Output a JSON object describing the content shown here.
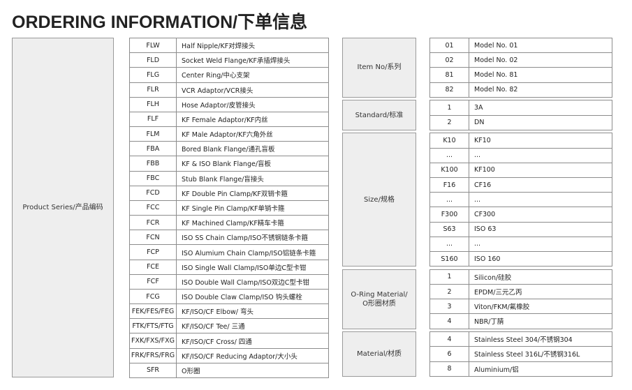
{
  "header": {
    "title": "ORDERING INFORMATION/下单信息"
  },
  "product_series": {
    "label": "Product Series/产品编码",
    "rows": [
      [
        "FLW",
        "Half Nipple/KF对焊接头"
      ],
      [
        "FLD",
        "Socket Weld Flange/KF承插焊接头"
      ],
      [
        "FLG",
        "Center Ring/中心支架"
      ],
      [
        "FLR",
        "VCR Adaptor/VCR接头"
      ],
      [
        "FLH",
        "Hose Adaptor/皮管接头"
      ],
      [
        "FLF",
        "KF Female Adaptor/KF内丝"
      ],
      [
        "FLM",
        "KF Male Adaptor/KF六角外丝"
      ],
      [
        "FBA",
        "Bored Blank Flange/通孔盲板"
      ],
      [
        "FBB",
        "KF & ISO Blank Flange/盲板"
      ],
      [
        "FBC",
        "Stub Blank Flange/盲接头"
      ],
      [
        "FCD",
        "KF Double Pin Clamp/KF双销卡箍"
      ],
      [
        "FCC",
        "KF Single Pin Clamp/KF单销卡箍"
      ],
      [
        "FCR",
        "KF Machined Clamp/KF精车卡箍"
      ],
      [
        "FCN",
        "ISO SS Chain Clamp/ISO不锈钢链条卡箍"
      ],
      [
        "FCP",
        "ISO Alumium Chain Clamp/ISO铝链条卡箍"
      ],
      [
        "FCE",
        "ISO Single Wall Clamp/ISO单边C型卡钳"
      ],
      [
        "FCF",
        "ISO Double Wall Clamp/ISO双边C型卡钳"
      ],
      [
        "FCG",
        "ISO Double Claw Clamp/ISO 钩头螺栓"
      ],
      [
        "FEK/FES/FEG",
        "KF/ISO/CF Elbow/ 弯头"
      ],
      [
        "FTK/FTS/FTG",
        "KF/ISO/CF Tee/ 三通"
      ],
      [
        "FXK/FXS/FXG",
        "KF/ISO/CF Cross/ 四通"
      ],
      [
        "FRK/FRS/FRG",
        "KF/ISO/CF Reducing Adaptor/大小头"
      ],
      [
        "SFR",
        "O形圈"
      ]
    ]
  },
  "groups": [
    {
      "label": "Item No/系列",
      "rows": [
        [
          "01",
          "Model No. 01"
        ],
        [
          "02",
          "Model No. 02"
        ],
        [
          "81",
          "Model No. 81"
        ],
        [
          "82",
          "Model No. 82"
        ]
      ]
    },
    {
      "label": "Standard/标准",
      "rows": [
        [
          "1",
          "3A"
        ],
        [
          "2",
          "DN"
        ]
      ]
    },
    {
      "label": "Size/规格",
      "rows": [
        [
          "K10",
          "KF10"
        ],
        [
          "...",
          "..."
        ],
        [
          "K100",
          "KF100"
        ],
        [
          "F16",
          "CF16"
        ],
        [
          "...",
          "..."
        ],
        [
          "F300",
          "CF300"
        ],
        [
          "S63",
          "ISO 63"
        ],
        [
          "...",
          "..."
        ],
        [
          "S160",
          "ISO 160"
        ]
      ]
    },
    {
      "label": "O-Ring Material/\nO形圈材质",
      "rows": [
        [
          "1",
          "Silicon/硅胶"
        ],
        [
          "2",
          "EPDM/三元乙丙"
        ],
        [
          "3",
          "Viton/FKM/氟橡胶"
        ],
        [
          "4",
          "NBR/丁腈"
        ]
      ]
    },
    {
      "label": "Material/材质",
      "rows": [
        [
          "4",
          "Stainless Steel 304/不锈钢304"
        ],
        [
          "6",
          "Stainless Steel 316L/不锈钢316L"
        ],
        [
          "8",
          "Aluminium/铝"
        ]
      ]
    }
  ]
}
